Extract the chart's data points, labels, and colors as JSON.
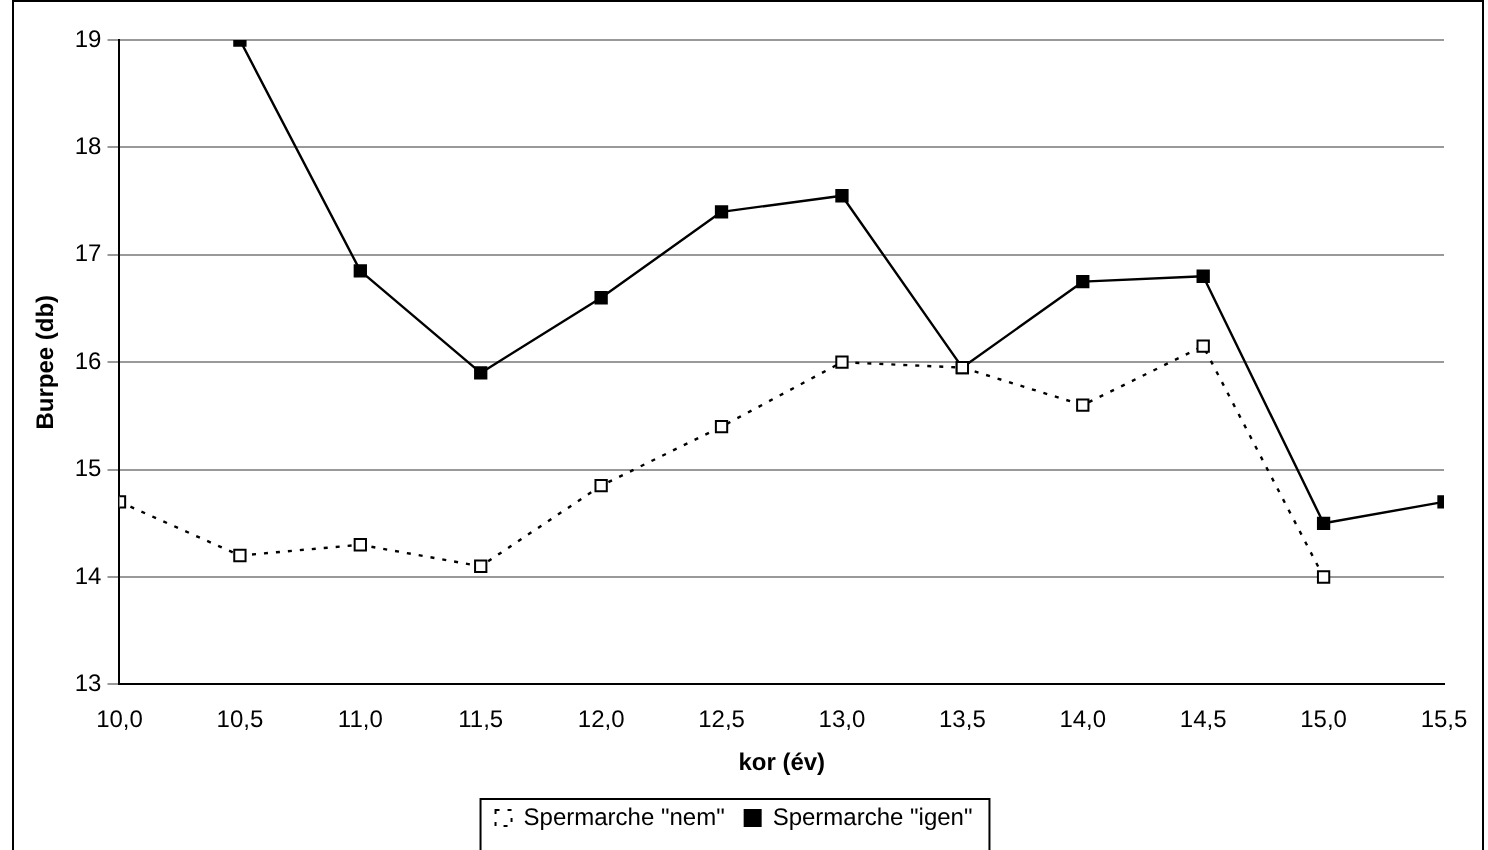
{
  "chart_data": {
    "type": "line",
    "xlabel": "kor (év)",
    "ylabel": "Burpee (db)",
    "x": [
      10.0,
      10.5,
      11.0,
      11.5,
      12.0,
      12.5,
      13.0,
      13.5,
      14.0,
      14.5,
      15.0,
      15.5
    ],
    "series": [
      {
        "name": "Spermarche \"nem\"",
        "color": "#000000",
        "line_style": "dotted",
        "values": [
          14.7,
          14.2,
          14.3,
          14.1,
          14.85,
          15.4,
          16.0,
          15.95,
          15.6,
          16.15,
          14.0,
          null
        ]
      },
      {
        "name": "Spermarche \"igen\"",
        "color": "#000000",
        "line_style": "solid",
        "values": [
          null,
          19.0,
          16.85,
          15.9,
          16.6,
          17.4,
          17.55,
          15.95,
          16.75,
          16.8,
          14.5,
          14.7
        ]
      }
    ],
    "xlim": [
      10,
      15.5
    ],
    "xticks": [
      {
        "value": 10,
        "label": "10,0"
      },
      {
        "value": 10.5,
        "label": "10,5"
      },
      {
        "value": 11,
        "label": "11,0"
      },
      {
        "value": 11.5,
        "label": "11,5"
      },
      {
        "value": 12,
        "label": "12,0"
      },
      {
        "value": 12.5,
        "label": "12,5"
      },
      {
        "value": 13,
        "label": "13,0"
      },
      {
        "value": 13.5,
        "label": "13,5"
      },
      {
        "value": 14,
        "label": "14,0"
      },
      {
        "value": 14.5,
        "label": "14,5"
      },
      {
        "value": 15,
        "label": "15,0"
      },
      {
        "value": 15.5,
        "label": "15,5"
      }
    ],
    "ylim": [
      13,
      19
    ],
    "yticks": [
      13,
      14,
      15,
      16,
      17,
      18,
      19
    ],
    "grid": "y",
    "legend": "bottom",
    "marker": "square"
  }
}
